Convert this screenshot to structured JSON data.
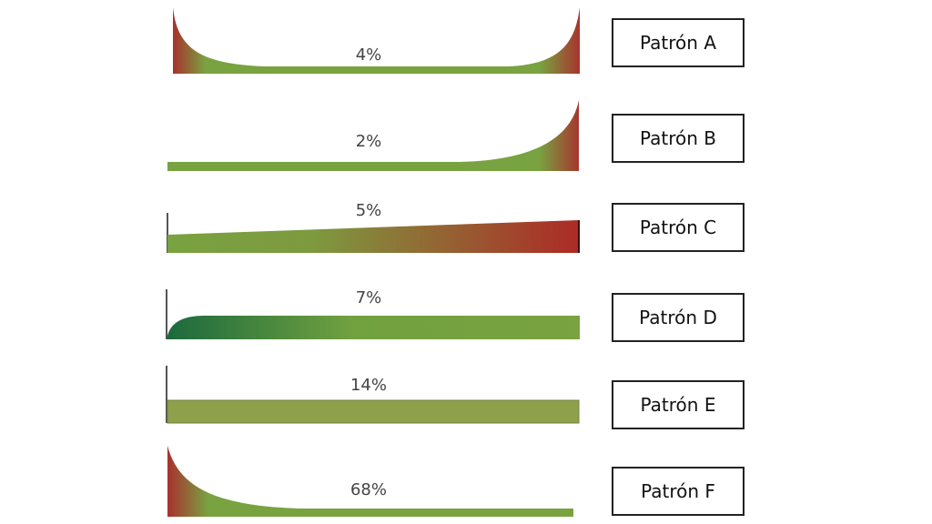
{
  "patterns": [
    {
      "label": "Patrón A",
      "percent": "4%"
    },
    {
      "label": "Patrón B",
      "percent": "2%"
    },
    {
      "label": "Patrón C",
      "percent": "5%"
    },
    {
      "label": "Patrón D",
      "percent": "7%"
    },
    {
      "label": "Patrón E",
      "percent": "14%"
    },
    {
      "label": "Patrón F",
      "percent": "68%"
    }
  ],
  "colors": {
    "green": "#79a240",
    "olive": "#8ea04a",
    "red": "#a8312e",
    "dark_green": "#1f6e3c",
    "axis": "#555555"
  }
}
